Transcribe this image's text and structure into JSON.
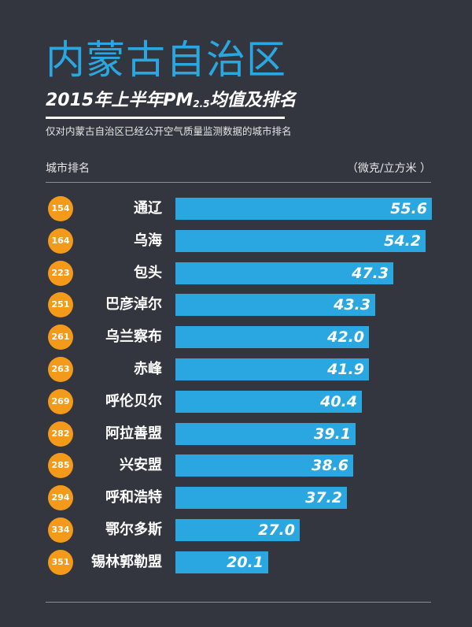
{
  "header": {
    "title": "内蒙古自治区",
    "subtitle_main": "2015年上半年PM",
    "subtitle_sub": "2.5",
    "subtitle_tail": "均值及排名",
    "note": "仅对内蒙古自治区已经公开空气质量监测数据的城市排名",
    "col_left": "城市排名",
    "col_right": "（微克/立方米 ）"
  },
  "colors": {
    "background": "#33363e",
    "bar": "#2aa7e0",
    "badge": "#f39a1b",
    "title": "#2aa7e0"
  },
  "chart_data": {
    "type": "bar",
    "orientation": "horizontal",
    "title": "内蒙古自治区",
    "subtitle": "2015年上半年PM2.5均值及排名",
    "xlabel": "（微克/立方米 ）",
    "ylabel": "城市排名",
    "xlim": [
      0,
      55.6
    ],
    "categories": [
      "通辽",
      "乌海",
      "包头",
      "巴彦淖尔",
      "乌兰察布",
      "赤峰",
      "呼伦贝尔",
      "阿拉善盟",
      "兴安盟",
      "呼和浩特",
      "鄂尔多斯",
      "锡林郭勒盟"
    ],
    "ranks": [
      "154",
      "164",
      "223",
      "251",
      "261",
      "263",
      "269",
      "282",
      "285",
      "294",
      "334",
      "351"
    ],
    "values": [
      55.6,
      54.2,
      47.3,
      43.3,
      42.0,
      41.9,
      40.4,
      39.1,
      38.6,
      37.2,
      27.0,
      20.1
    ],
    "value_labels": [
      "55.6",
      "54.2",
      "47.3",
      "43.3",
      "42.0",
      "41.9",
      "40.4",
      "39.1",
      "38.6",
      "37.2",
      "27.0",
      "20.1"
    ]
  }
}
